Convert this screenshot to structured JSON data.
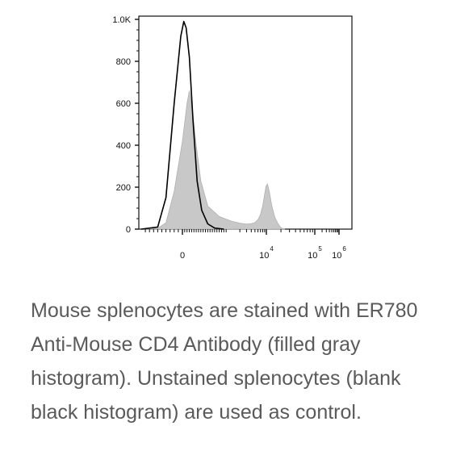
{
  "chart_data": {
    "type": "area",
    "title": "",
    "xlabel": "",
    "ylabel": "",
    "x_scale": "biexponential",
    "ylim": [
      0,
      1000
    ],
    "y_ticks": [
      "0",
      "200",
      "400",
      "600",
      "800",
      "1.0K"
    ],
    "x_ticks": [
      {
        "base": "0",
        "exp": ""
      },
      {
        "base": "10",
        "exp": "4"
      },
      {
        "base": "10",
        "exp": "5"
      },
      {
        "base": "10",
        "exp": "6"
      }
    ],
    "grid": false,
    "series": [
      {
        "style": "filled-gray",
        "color": "#c8c8c8",
        "points": [
          [
            -500,
            0
          ],
          [
            -300,
            4
          ],
          [
            -200,
            30
          ],
          [
            -100,
            180
          ],
          [
            0,
            420
          ],
          [
            100,
            600
          ],
          [
            150,
            660
          ],
          [
            220,
            560
          ],
          [
            300,
            400
          ],
          [
            400,
            230
          ],
          [
            550,
            110
          ],
          [
            800,
            60
          ],
          [
            1200,
            38
          ],
          [
            2000,
            28
          ],
          [
            3000,
            24
          ],
          [
            4000,
            26
          ],
          [
            5000,
            32
          ],
          [
            6000,
            45
          ],
          [
            7000,
            70
          ],
          [
            8000,
            110
          ],
          [
            9000,
            165
          ],
          [
            9800,
            205
          ],
          [
            10500,
            215
          ],
          [
            11500,
            180
          ],
          [
            13000,
            110
          ],
          [
            15000,
            55
          ],
          [
            17500,
            25
          ],
          [
            20000,
            6
          ],
          [
            24000,
            0
          ]
        ]
      },
      {
        "style": "line-black",
        "color": "#000000",
        "points": [
          [
            -500,
            0
          ],
          [
            -300,
            10
          ],
          [
            -200,
            150
          ],
          [
            -100,
            600
          ],
          [
            -20,
            920
          ],
          [
            30,
            990
          ],
          [
            80,
            960
          ],
          [
            150,
            820
          ],
          [
            230,
            520
          ],
          [
            320,
            230
          ],
          [
            420,
            90
          ],
          [
            550,
            25
          ],
          [
            700,
            5
          ],
          [
            900,
            0
          ]
        ]
      }
    ]
  },
  "caption": "Mouse splenocytes are stained with ER780 Anti-Mouse CD4 Antibody (filled gray histogram). Unstained splenocytes (blank black histogram) are used as control."
}
